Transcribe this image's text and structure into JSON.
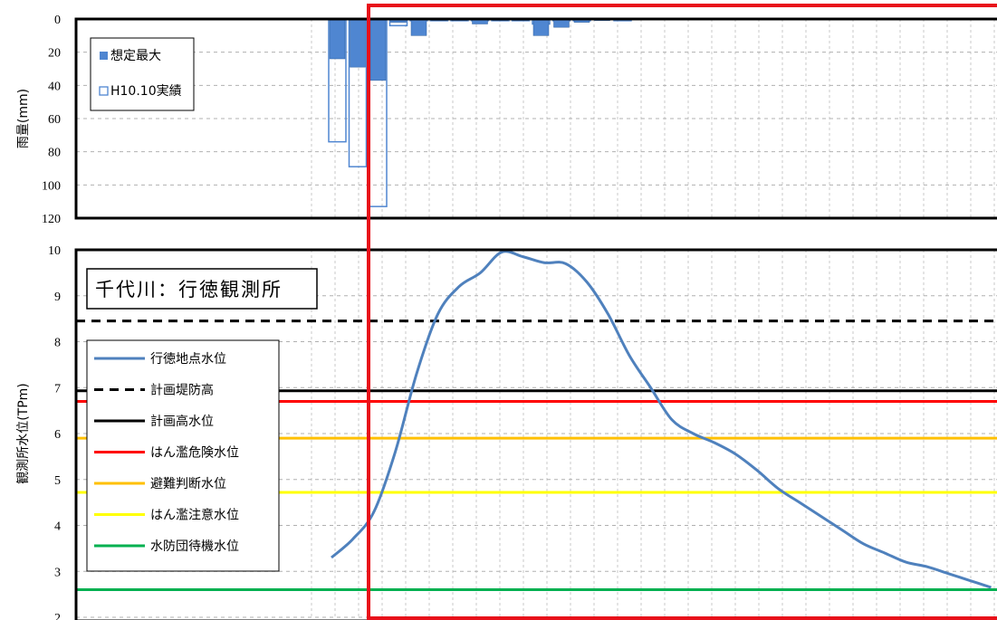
{
  "chart_data": [
    {
      "type": "bar",
      "ylabel": "雨量(mm)",
      "ylim": [
        0,
        120
      ],
      "yticks": [
        0,
        20,
        40,
        60,
        80,
        100,
        120
      ],
      "y_inverted": true,
      "legend": {
        "position": "top-left",
        "entries": [
          "想定最大",
          "H10.10実績"
        ]
      },
      "colors": {
        "想定最大": "#4f86d1",
        "H10.10実績": "#4f86d1"
      },
      "series": [
        {
          "name": "想定最大",
          "values": [
            24,
            29,
            37,
            2,
            10,
            1,
            1,
            3,
            1,
            1,
            10,
            5,
            2,
            1
          ]
        },
        {
          "name": "H10.10実績",
          "values": [
            74,
            89,
            113,
            4,
            1,
            1,
            1,
            1,
            1,
            1,
            3,
            1,
            1,
            0,
            1
          ]
        }
      ],
      "grid": true
    },
    {
      "type": "line",
      "title": "千代川：行徳観測所",
      "ylabel": "観測所水位(TPm)",
      "ylim": [
        2,
        10
      ],
      "yticks": [
        2,
        3,
        4,
        5,
        6,
        7,
        8,
        9,
        10
      ],
      "legend": {
        "position": "left"
      },
      "grid": true,
      "series": [
        {
          "name": "行徳地点水位",
          "color": "#4f81bd",
          "x": [
            0,
            1,
            2,
            3,
            4,
            5,
            6,
            7,
            8,
            9,
            10,
            11,
            12,
            13,
            14,
            15,
            16,
            17,
            18,
            19,
            20,
            21,
            22,
            23,
            24,
            25,
            26,
            27,
            28,
            29,
            30,
            31
          ],
          "values": [
            3.3,
            3.7,
            4.3,
            5.6,
            7.3,
            8.6,
            9.2,
            9.5,
            9.95,
            9.85,
            9.72,
            9.7,
            9.3,
            8.6,
            7.7,
            7.0,
            6.3,
            6.0,
            5.8,
            5.55,
            5.2,
            4.8,
            4.5,
            4.2,
            3.9,
            3.6,
            3.4,
            3.2,
            3.1,
            2.95,
            2.8,
            2.65
          ]
        },
        {
          "name": "計画堤防高",
          "color": "#000000",
          "style": "dashed",
          "value": 8.45
        },
        {
          "name": "計画高水位",
          "color": "#000000",
          "value": 6.93
        },
        {
          "name": "はん濫危険水位",
          "color": "#ff0000",
          "value": 6.7
        },
        {
          "name": "避難判断水位",
          "color": "#ffc000",
          "value": 5.9
        },
        {
          "name": "はん濫注意水位",
          "color": "#ffff00",
          "value": 4.72
        },
        {
          "name": "水防団待機水位",
          "color": "#00b050",
          "value": 2.6
        }
      ]
    }
  ],
  "highlight_color": "#e8101a"
}
